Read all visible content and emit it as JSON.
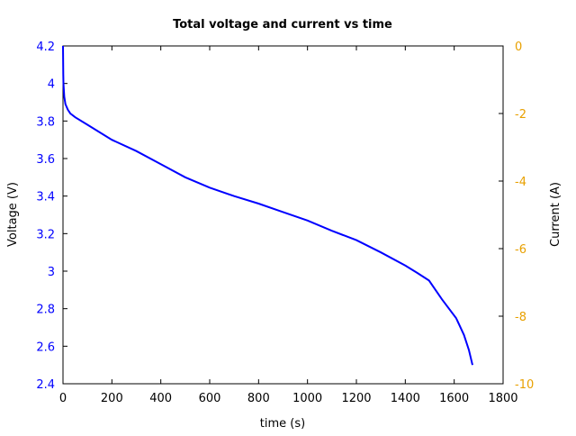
{
  "chart_data": {
    "type": "line",
    "title": "Total voltage and current vs time",
    "xlabel": "time (s)",
    "ylabel": "Voltage (V)",
    "y2label": "Current (A)",
    "xlim": [
      0,
      1800
    ],
    "ylim": [
      2.4,
      4.2
    ],
    "y2lim": [
      -10,
      0
    ],
    "xticks": [
      "0",
      "200",
      "400",
      "600",
      "800",
      "1000",
      "1200",
      "1400",
      "1600",
      "1800"
    ],
    "yticks": [
      "2.4",
      "2.6",
      "2.8",
      "3",
      "3.2",
      "3.4",
      "3.6",
      "3.8",
      "4",
      "4.2"
    ],
    "y2ticks": [
      "-10",
      "-8",
      "-6",
      "-4",
      "-2",
      "0"
    ],
    "grid": false,
    "colors": {
      "voltage": "#0000ff",
      "left_axis": "#0000ff",
      "right_axis": "#e8a000"
    },
    "series": [
      {
        "axis": "left",
        "x": [
          0,
          1,
          2,
          5,
          10,
          20,
          30,
          50,
          100,
          200,
          300,
          400,
          500,
          600,
          700,
          800,
          900,
          1000,
          1100,
          1200,
          1300,
          1400,
          1450,
          1497,
          1550,
          1608,
          1640,
          1660,
          1675
        ],
        "y": [
          4.2,
          4.05,
          4.0,
          3.93,
          3.89,
          3.86,
          3.84,
          3.82,
          3.78,
          3.7,
          3.64,
          3.57,
          3.5,
          3.445,
          3.4,
          3.36,
          3.315,
          3.27,
          3.215,
          3.165,
          3.1,
          3.03,
          2.99,
          2.95,
          2.85,
          2.75,
          2.66,
          2.58,
          2.5
        ]
      }
    ]
  }
}
